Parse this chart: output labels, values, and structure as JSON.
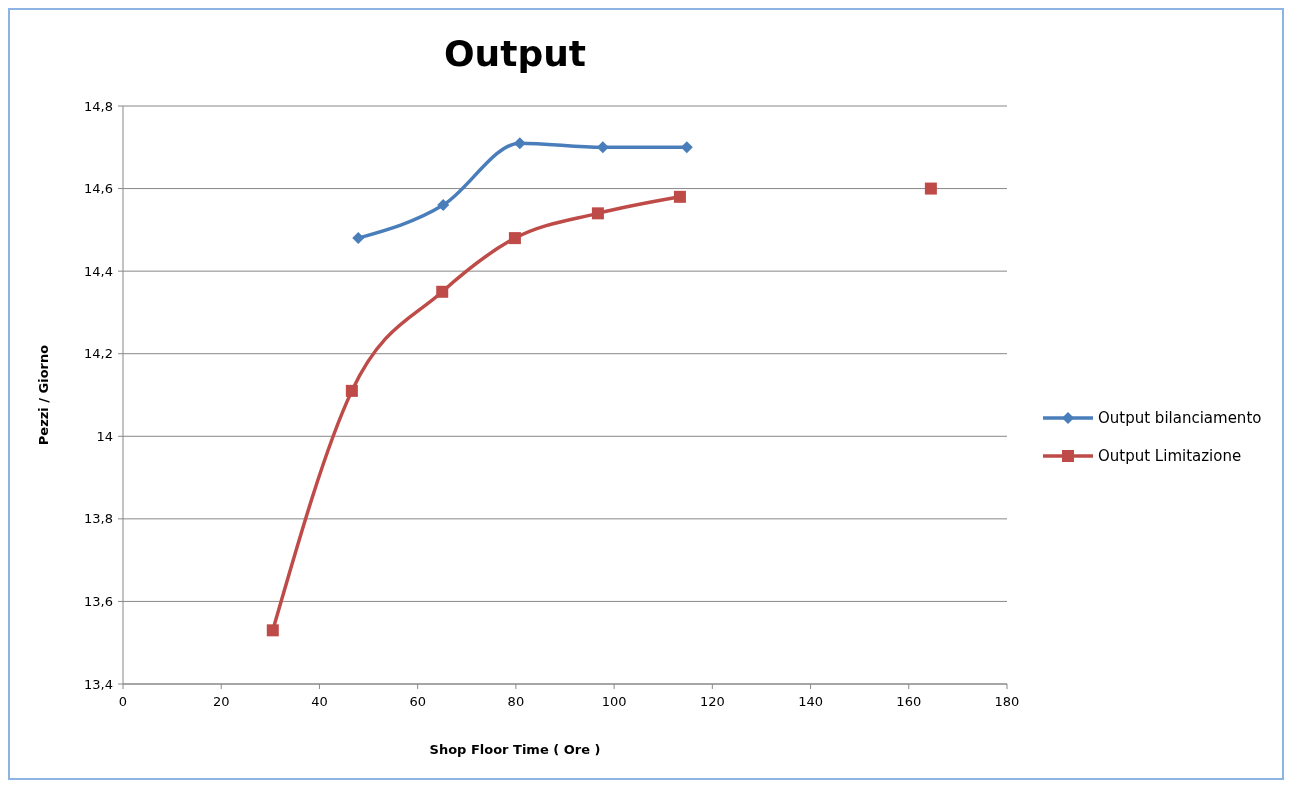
{
  "chart_data": {
    "type": "line",
    "title": "Output",
    "xlabel": "Shop Floor Time  ( Ore )",
    "ylabel": "Pezzi / Giorno",
    "xlim": [
      0,
      180
    ],
    "xticks": [
      0,
      20,
      40,
      60,
      80,
      100,
      120,
      140,
      160,
      180
    ],
    "ylim": [
      13.4,
      14.8
    ],
    "yticks": [
      {
        "value": 13.4,
        "label": "13,4"
      },
      {
        "value": 13.6,
        "label": "13,6"
      },
      {
        "value": 13.8,
        "label": "13,8"
      },
      14,
      {
        "value": 14.2,
        "label": "14,2"
      },
      {
        "value": 14.4,
        "label": "14,4"
      },
      {
        "value": 14.6,
        "label": "14,6"
      },
      {
        "value": 14.8,
        "label": "14,8"
      }
    ],
    "grid": "y",
    "legend": "right",
    "series": [
      {
        "name": "Output bilanciamento",
        "color": "#4a7ebb",
        "marker": "diamond",
        "x": [
          47.9,
          65.2,
          80.8,
          97.7,
          114.8
        ],
        "values": [
          14.48,
          14.56,
          14.71,
          14.7,
          14.7
        ]
      },
      {
        "name": "Output Limitazione",
        "color": "#be4b48",
        "marker": "square",
        "x": [
          30.5,
          46.6,
          65,
          79.8,
          96.7,
          113.4
        ],
        "values": [
          13.53,
          14.11,
          14.35,
          14.48,
          14.54,
          14.58
        ]
      },
      {
        "type": "scatter",
        "color": "#be4b48",
        "marker": "square",
        "x": [
          164.5
        ],
        "values": [
          14.6
        ]
      }
    ]
  }
}
